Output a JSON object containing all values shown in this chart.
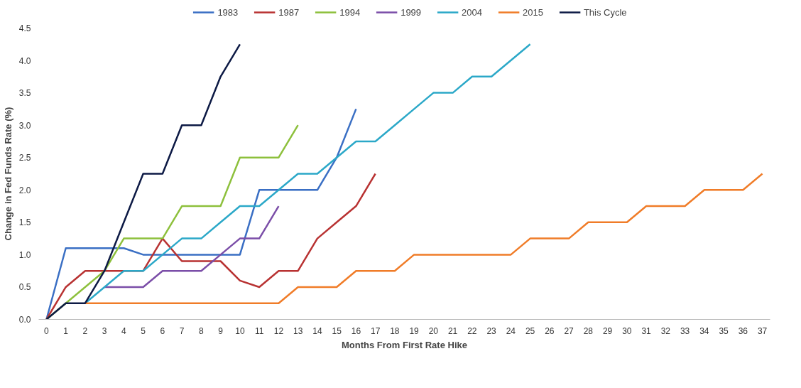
{
  "chart_data": {
    "type": "line",
    "xlabel": "Months From First Rate Hike",
    "ylabel": "Change in Fed Funds Rate (%)",
    "x": [
      0,
      1,
      2,
      3,
      4,
      5,
      6,
      7,
      8,
      9,
      10,
      11,
      12,
      13,
      14,
      15,
      16,
      17,
      18,
      19,
      20,
      21,
      22,
      23,
      24,
      25,
      26,
      27,
      28,
      29,
      30,
      31,
      32,
      33,
      34,
      35,
      36,
      37
    ],
    "series": [
      {
        "name": "1983",
        "color": "#3a6fc4",
        "values": [
          0,
          1.1,
          1.1,
          1.1,
          1.1,
          1.0,
          1.0,
          1.0,
          1.0,
          1.0,
          1.0,
          2.0,
          2.0,
          2.0,
          2.0,
          2.5,
          3.25,
          null,
          null,
          null,
          null,
          null,
          null,
          null,
          null,
          null,
          null,
          null,
          null,
          null,
          null,
          null,
          null,
          null,
          null,
          null,
          null,
          null
        ]
      },
      {
        "name": "1987",
        "color": "#b83232",
        "values": [
          0,
          0.5,
          0.75,
          0.75,
          0.75,
          0.75,
          1.25,
          0.9,
          0.9,
          0.9,
          0.6,
          0.5,
          0.75,
          0.75,
          1.25,
          1.5,
          1.75,
          2.25,
          null,
          null,
          null,
          null,
          null,
          null,
          null,
          null,
          null,
          null,
          null,
          null,
          null,
          null,
          null,
          null,
          null,
          null,
          null,
          null
        ]
      },
      {
        "name": "1994",
        "color": "#8dc03c",
        "values": [
          0,
          0.25,
          0.5,
          0.75,
          1.25,
          1.25,
          1.25,
          1.75,
          1.75,
          1.75,
          2.5,
          2.5,
          2.5,
          3.0,
          null,
          null,
          null,
          null,
          null,
          null,
          null,
          null,
          null,
          null,
          null,
          null,
          null,
          null,
          null,
          null,
          null,
          null,
          null,
          null,
          null,
          null,
          null,
          null
        ]
      },
      {
        "name": "1999",
        "color": "#7b4ea8",
        "values": [
          null,
          null,
          null,
          0.5,
          0.5,
          0.5,
          0.75,
          0.75,
          0.75,
          1.0,
          1.25,
          1.25,
          1.75,
          null,
          null,
          null,
          null,
          null,
          null,
          null,
          null,
          null,
          null,
          null,
          null,
          null,
          null,
          null,
          null,
          null,
          null,
          null,
          null,
          null,
          null,
          null,
          null,
          null
        ]
      },
      {
        "name": "2004",
        "color": "#2ba8c8",
        "values": [
          null,
          null,
          0.25,
          0.5,
          0.75,
          0.75,
          1.0,
          1.25,
          1.25,
          1.5,
          1.75,
          1.75,
          2.0,
          2.25,
          2.25,
          2.5,
          2.75,
          2.75,
          3.0,
          3.25,
          3.5,
          3.5,
          3.75,
          3.75,
          4.0,
          4.25,
          null,
          null,
          null,
          null,
          null,
          null,
          null,
          null,
          null,
          null,
          null,
          null
        ]
      },
      {
        "name": "2015",
        "color": "#f07c28",
        "values": [
          null,
          null,
          0.25,
          0.25,
          0.25,
          0.25,
          0.25,
          0.25,
          0.25,
          0.25,
          0.25,
          0.25,
          0.25,
          0.5,
          0.5,
          0.5,
          0.75,
          0.75,
          0.75,
          1.0,
          1.0,
          1.0,
          1.0,
          1.0,
          1.0,
          1.25,
          1.25,
          1.25,
          1.5,
          1.5,
          1.5,
          1.75,
          1.75,
          1.75,
          2.0,
          2.0,
          2.0,
          2.25
        ]
      },
      {
        "name": "This Cycle",
        "color": "#0d1a45",
        "values": [
          0,
          0.25,
          0.25,
          0.75,
          1.5,
          2.25,
          2.25,
          3.0,
          3.0,
          3.75,
          4.25,
          null,
          null,
          null,
          null,
          null,
          null,
          null,
          null,
          null,
          null,
          null,
          null,
          null,
          null,
          null,
          null,
          null,
          null,
          null,
          null,
          null,
          null,
          null,
          null,
          null,
          null,
          null
        ]
      }
    ],
    "xlim": [
      -0.4,
      37.4
    ],
    "xticks": [
      0,
      1,
      2,
      3,
      4,
      5,
      6,
      7,
      8,
      9,
      10,
      11,
      12,
      13,
      14,
      15,
      16,
      17,
      18,
      19,
      20,
      21,
      22,
      23,
      24,
      25,
      26,
      27,
      28,
      29,
      30,
      31,
      32,
      33,
      34,
      35,
      36,
      37
    ],
    "ylim": [
      0,
      4.5
    ],
    "yticks": [
      {
        "value": 0,
        "label": "0.0"
      },
      0.5,
      {
        "value": 1,
        "label": "1.0"
      },
      1.5,
      {
        "value": 2,
        "label": "2.0"
      },
      2.5,
      {
        "value": 3,
        "label": "3.0"
      },
      3.5,
      {
        "value": 4,
        "label": "4.0"
      },
      4.5
    ],
    "grid": false,
    "legend": "top",
    "line_style": "solid"
  }
}
